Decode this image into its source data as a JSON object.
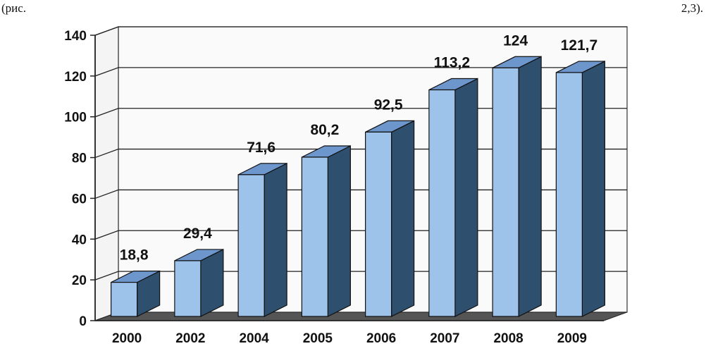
{
  "caption": {
    "left": "(рис.",
    "right": "2,3)."
  },
  "chart_data": {
    "type": "bar",
    "title": "",
    "xlabel": "",
    "ylabel": "",
    "categories": [
      "2000",
      "2002",
      "2004",
      "2005",
      "2006",
      "2007",
      "2008",
      "2009"
    ],
    "values": [
      18.8,
      29.4,
      71.6,
      80.2,
      92.5,
      113.2,
      124,
      121.7
    ],
    "value_labels": [
      "18,8",
      "29,4",
      "71,6",
      "80,2",
      "92,5",
      "113,2",
      "124",
      "121,7"
    ],
    "yticks": [
      "0",
      "20",
      "40",
      "60",
      "80",
      "100",
      "120",
      "140"
    ],
    "ylim": [
      0,
      140
    ],
    "grid": true,
    "style": "3d",
    "colors": {
      "front": "#9ec3ea",
      "top": "#6d97cc",
      "side": "#2e4f6e",
      "floor": "#555555"
    }
  }
}
